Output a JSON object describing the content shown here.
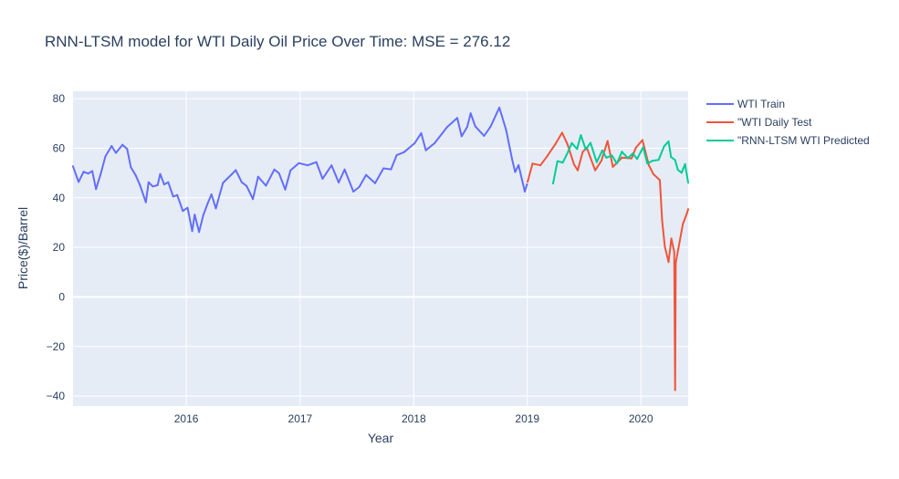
{
  "chart_data": {
    "type": "line",
    "title": "RNN-LTSM model for WTI Daily Oil Price Over Time: MSE = 276.12",
    "xlabel": "Year",
    "ylabel": "Price($)/Barrel",
    "xlim": [
      "2015-01-02",
      "2020-06-01"
    ],
    "ylim": [
      -44,
      83
    ],
    "x_ticks": [
      {
        "value": "2016-01-01",
        "label": "2016"
      },
      {
        "value": "2017-01-01",
        "label": "2017"
      },
      {
        "value": "2018-01-01",
        "label": "2018"
      },
      {
        "value": "2019-01-01",
        "label": "2019"
      },
      {
        "value": "2020-01-01",
        "label": "2020"
      }
    ],
    "y_ticks": [
      {
        "value": -40,
        "label": "−40"
      },
      {
        "value": -20,
        "label": "−20"
      },
      {
        "value": 0,
        "label": "0"
      },
      {
        "value": 20,
        "label": "20"
      },
      {
        "value": 40,
        "label": "40"
      },
      {
        "value": 60,
        "label": "60"
      },
      {
        "value": 80,
        "label": "80"
      }
    ],
    "grid": true,
    "legend_position": "top-right",
    "plot_background": "#e5ecf6",
    "series": [
      {
        "name": "WTI Train",
        "color": "#636efa",
        "points": [
          [
            "2015-01-02",
            52.7
          ],
          [
            "2015-01-20",
            46.4
          ],
          [
            "2015-02-05",
            50.5
          ],
          [
            "2015-02-20",
            49.8
          ],
          [
            "2015-03-05",
            50.8
          ],
          [
            "2015-03-17",
            43.5
          ],
          [
            "2015-04-01",
            49.6
          ],
          [
            "2015-04-16",
            56.7
          ],
          [
            "2015-05-06",
            60.9
          ],
          [
            "2015-05-20",
            58.1
          ],
          [
            "2015-06-10",
            61.4
          ],
          [
            "2015-06-25",
            59.7
          ],
          [
            "2015-07-07",
            52.3
          ],
          [
            "2015-07-22",
            49.2
          ],
          [
            "2015-08-05",
            45.2
          ],
          [
            "2015-08-24",
            38.2
          ],
          [
            "2015-09-02",
            46.3
          ],
          [
            "2015-09-15",
            44.6
          ],
          [
            "2015-10-01",
            45.1
          ],
          [
            "2015-10-09",
            49.6
          ],
          [
            "2015-10-22",
            45.4
          ],
          [
            "2015-11-04",
            46.3
          ],
          [
            "2015-11-20",
            40.5
          ],
          [
            "2015-12-03",
            41.1
          ],
          [
            "2015-12-21",
            34.7
          ],
          [
            "2016-01-05",
            36.0
          ],
          [
            "2016-01-20",
            26.6
          ],
          [
            "2016-01-28",
            33.2
          ],
          [
            "2016-02-11",
            26.2
          ],
          [
            "2016-02-25",
            33.1
          ],
          [
            "2016-03-10",
            37.8
          ],
          [
            "2016-03-22",
            41.4
          ],
          [
            "2016-04-05",
            35.7
          ],
          [
            "2016-04-28",
            46.0
          ],
          [
            "2016-05-26",
            49.5
          ],
          [
            "2016-06-08",
            51.2
          ],
          [
            "2016-06-27",
            46.3
          ],
          [
            "2016-07-13",
            44.8
          ],
          [
            "2016-08-02",
            39.5
          ],
          [
            "2016-08-19",
            48.5
          ],
          [
            "2016-09-13",
            44.9
          ],
          [
            "2016-10-10",
            51.4
          ],
          [
            "2016-10-25",
            49.9
          ],
          [
            "2016-11-14",
            43.3
          ],
          [
            "2016-12-01",
            51.1
          ],
          [
            "2016-12-28",
            54.0
          ],
          [
            "2017-01-25",
            53.1
          ],
          [
            "2017-02-22",
            54.4
          ],
          [
            "2017-03-14",
            47.7
          ],
          [
            "2017-04-12",
            53.1
          ],
          [
            "2017-05-05",
            46.2
          ],
          [
            "2017-05-24",
            51.4
          ],
          [
            "2017-06-21",
            42.5
          ],
          [
            "2017-07-10",
            44.4
          ],
          [
            "2017-08-01",
            49.2
          ],
          [
            "2017-08-30",
            45.9
          ],
          [
            "2017-09-26",
            51.9
          ],
          [
            "2017-10-20",
            51.5
          ],
          [
            "2017-11-07",
            57.2
          ],
          [
            "2017-12-01",
            58.4
          ],
          [
            "2018-01-04",
            62.0
          ],
          [
            "2018-01-25",
            66.1
          ],
          [
            "2018-02-09",
            59.2
          ],
          [
            "2018-03-09",
            62.0
          ],
          [
            "2018-04-18",
            68.5
          ],
          [
            "2018-05-21",
            72.2
          ],
          [
            "2018-06-04",
            64.8
          ],
          [
            "2018-06-22",
            68.6
          ],
          [
            "2018-07-03",
            74.1
          ],
          [
            "2018-07-18",
            68.8
          ],
          [
            "2018-08-15",
            65.0
          ],
          [
            "2018-09-05",
            68.7
          ],
          [
            "2018-10-03",
            76.4
          ],
          [
            "2018-10-25",
            67.3
          ],
          [
            "2018-11-13",
            55.7
          ],
          [
            "2018-11-23",
            50.4
          ],
          [
            "2018-12-04",
            53.2
          ],
          [
            "2018-12-24",
            42.5
          ],
          [
            "2018-12-31",
            45.4
          ]
        ]
      },
      {
        "name": "\"WTI Daily Test",
        "color": "#ef553b",
        "points": [
          [
            "2019-01-02",
            46.5
          ],
          [
            "2019-01-18",
            53.8
          ],
          [
            "2019-02-12",
            53.1
          ],
          [
            "2019-03-05",
            56.6
          ],
          [
            "2019-04-01",
            61.6
          ],
          [
            "2019-04-23",
            66.3
          ],
          [
            "2019-05-10",
            61.7
          ],
          [
            "2019-05-31",
            53.5
          ],
          [
            "2019-06-12",
            51.1
          ],
          [
            "2019-06-28",
            58.5
          ],
          [
            "2019-07-11",
            60.2
          ],
          [
            "2019-08-07",
            51.1
          ],
          [
            "2019-08-27",
            54.9
          ],
          [
            "2019-09-16",
            62.9
          ],
          [
            "2019-10-03",
            52.5
          ],
          [
            "2019-11-01",
            56.2
          ],
          [
            "2019-12-02",
            55.9
          ],
          [
            "2019-12-16",
            60.2
          ],
          [
            "2020-01-06",
            63.3
          ],
          [
            "2020-01-27",
            53.1
          ],
          [
            "2020-02-10",
            49.6
          ],
          [
            "2020-03-02",
            47.1
          ],
          [
            "2020-03-09",
            31.1
          ],
          [
            "2020-03-18",
            20.4
          ],
          [
            "2020-03-30",
            14.1
          ],
          [
            "2020-04-08",
            23.6
          ],
          [
            "2020-04-14",
            20.1
          ],
          [
            "2020-04-17",
            18.3
          ],
          [
            "2020-04-20",
            -37.6
          ],
          [
            "2020-04-22",
            13.8
          ],
          [
            "2020-05-01",
            19.8
          ],
          [
            "2020-05-15",
            29.4
          ],
          [
            "2020-05-28",
            33.7
          ],
          [
            "2020-06-01",
            35.4
          ]
        ]
      },
      {
        "name": "\"RNN-LTSM WTI Predicted",
        "color": "#00cc96",
        "points": [
          [
            "2019-03-25",
            45.8
          ],
          [
            "2019-04-08",
            54.8
          ],
          [
            "2019-04-25",
            54.2
          ],
          [
            "2019-05-09",
            57.8
          ],
          [
            "2019-05-24",
            62.1
          ],
          [
            "2019-06-10",
            59.7
          ],
          [
            "2019-06-22",
            65.3
          ],
          [
            "2019-07-08",
            59.5
          ],
          [
            "2019-07-23",
            62.2
          ],
          [
            "2019-08-12",
            54.4
          ],
          [
            "2019-08-30",
            59.1
          ],
          [
            "2019-09-12",
            56.2
          ],
          [
            "2019-09-30",
            57.1
          ],
          [
            "2019-10-16",
            53.8
          ],
          [
            "2019-11-01",
            58.6
          ],
          [
            "2019-11-20",
            56.0
          ],
          [
            "2019-12-06",
            57.9
          ],
          [
            "2019-12-20",
            55.7
          ],
          [
            "2020-01-08",
            60.4
          ],
          [
            "2020-01-22",
            53.8
          ],
          [
            "2020-02-07",
            54.9
          ],
          [
            "2020-02-27",
            55.3
          ],
          [
            "2020-03-16",
            60.8
          ],
          [
            "2020-03-30",
            62.8
          ],
          [
            "2020-04-07",
            56.5
          ],
          [
            "2020-04-20",
            55.2
          ],
          [
            "2020-04-29",
            51.3
          ],
          [
            "2020-05-11",
            50.1
          ],
          [
            "2020-05-22",
            53.6
          ],
          [
            "2020-06-01",
            46.1
          ]
        ]
      }
    ]
  }
}
